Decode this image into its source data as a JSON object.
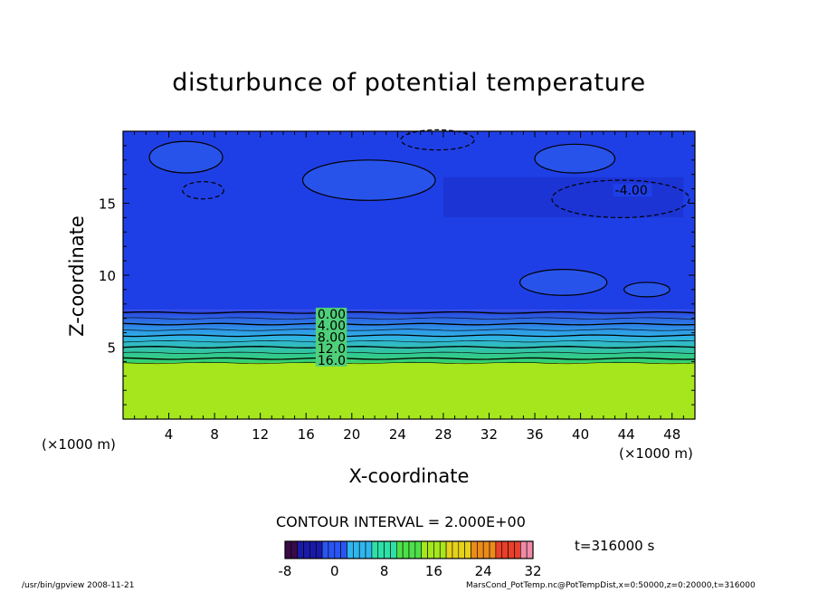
{
  "title": "disturbunce of potential temperature",
  "chart_data": {
    "type": "heatmap",
    "title": "disturbunce of potential temperature",
    "xlabel": "X-coordinate",
    "ylabel": "Z-coordinate",
    "x_unit_note": "(×1000 m)",
    "y_unit_note": "(×1000 m)",
    "xlim": [
      0,
      50
    ],
    "ylim": [
      0,
      20
    ],
    "x_ticks": [
      4,
      8,
      12,
      16,
      20,
      24,
      28,
      32,
      36,
      40,
      44,
      48
    ],
    "y_ticks": [
      5,
      10,
      15
    ],
    "contour_labels": [
      {
        "label": "0.00",
        "x": 17.0,
        "z": 7.3
      },
      {
        "label": "4.00",
        "x": 17.0,
        "z": 6.5
      },
      {
        "label": "8.00",
        "x": 17.0,
        "z": 5.7
      },
      {
        "label": "12.0",
        "x": 17.0,
        "z": 4.9
      },
      {
        "label": "16.0",
        "x": 17.0,
        "z": 4.1
      },
      {
        "label": "-4.00",
        "x": 43.0,
        "z": 15.9
      }
    ],
    "contour_interval_text": "CONTOUR INTERVAL = 2.000E+00",
    "colorbar": {
      "min": -8,
      "max": 32,
      "tick_labels": [
        "-8",
        "0",
        "8",
        "16",
        "24",
        "32"
      ]
    },
    "time_text": "t=316000 s"
  },
  "footer_left": "/usr/bin/gpview   2008-11-21",
  "footer_right": "MarsCond_PotTemp.nc@PotTempDist,x=0:50000,z=0:20000,t=316000",
  "colors": {
    "upper_field": "#1f3fe6",
    "lower_field": "#a6e61c",
    "background": "#ffffff"
  }
}
